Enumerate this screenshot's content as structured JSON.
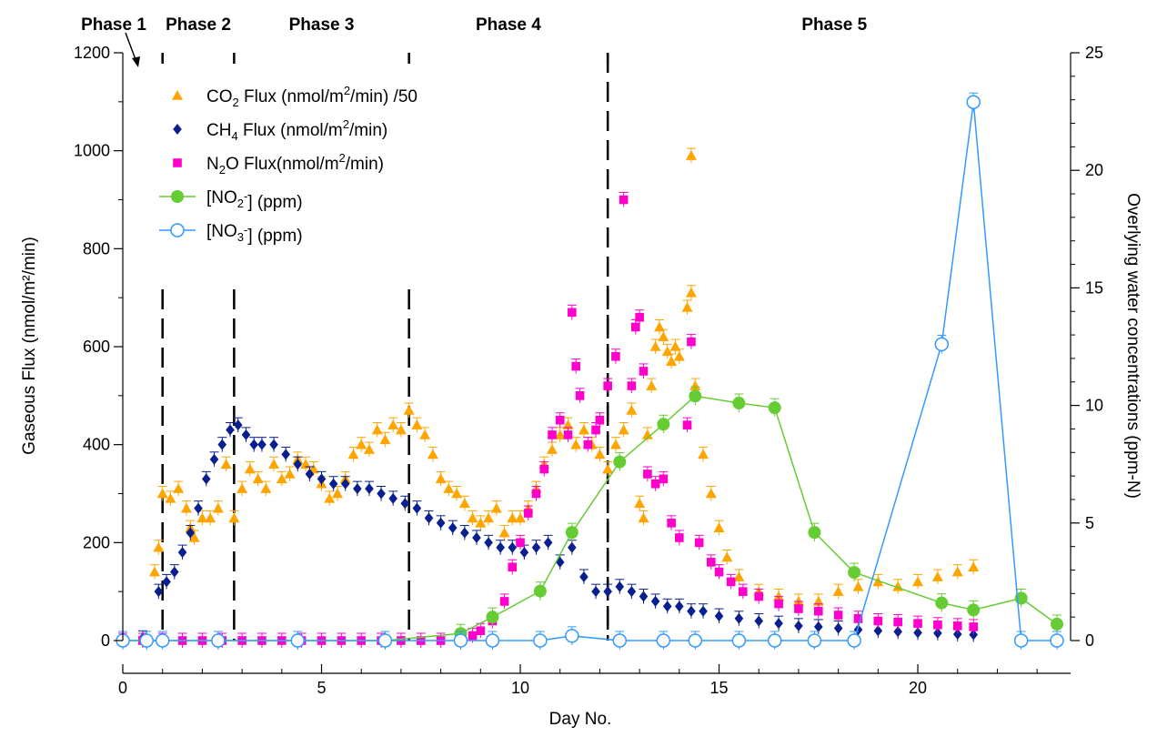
{
  "chart_data": {
    "type": "scatter",
    "xlabel": "Day No.",
    "ylabel": "Gaseous Flux (nmol/m²/min)",
    "y2label": "Overlying water concentrations (ppm-N)",
    "xlim": [
      -0.6,
      23.6
    ],
    "ylim": [
      0,
      1200
    ],
    "y2lim": [
      0,
      25
    ],
    "x_ticks": [
      0,
      5,
      10,
      15,
      20
    ],
    "y_ticks": [
      0,
      200,
      400,
      600,
      800,
      1000,
      1200
    ],
    "y2_ticks": [
      0,
      5,
      10,
      15,
      20,
      25
    ],
    "phase_boundaries": [
      1.0,
      2.8,
      7.2,
      12.2
    ],
    "phases": [
      {
        "label": "Phase 1",
        "x": 0.0
      },
      {
        "label": "Phase 2",
        "x": 1.9
      },
      {
        "label": "Phase 3",
        "x": 5.0
      },
      {
        "label": "Phase 4",
        "x": 9.7
      },
      {
        "label": "Phase 5",
        "x": 17.9
      }
    ],
    "series": [
      {
        "name": "CO2 Flux (nmol/m2/min) /50",
        "color": "#FFA500",
        "marker": "triangle",
        "axis": "left",
        "points": [
          [
            0.8,
            140
          ],
          [
            0.9,
            190
          ],
          [
            1.0,
            300
          ],
          [
            1.2,
            290
          ],
          [
            1.4,
            310
          ],
          [
            1.6,
            270
          ],
          [
            1.7,
            230
          ],
          [
            1.8,
            210
          ],
          [
            2.0,
            250
          ],
          [
            2.2,
            250
          ],
          [
            2.4,
            270
          ],
          [
            2.6,
            360
          ],
          [
            2.8,
            250
          ],
          [
            3.0,
            310
          ],
          [
            3.2,
            350
          ],
          [
            3.4,
            330
          ],
          [
            3.6,
            310
          ],
          [
            3.8,
            360
          ],
          [
            4.0,
            330
          ],
          [
            4.2,
            340
          ],
          [
            4.4,
            370
          ],
          [
            4.6,
            360
          ],
          [
            4.8,
            350
          ],
          [
            5.0,
            320
          ],
          [
            5.2,
            290
          ],
          [
            5.4,
            300
          ],
          [
            5.6,
            330
          ],
          [
            5.8,
            380
          ],
          [
            6.0,
            400
          ],
          [
            6.2,
            390
          ],
          [
            6.4,
            430
          ],
          [
            6.6,
            410
          ],
          [
            6.8,
            440
          ],
          [
            7.0,
            430
          ],
          [
            7.2,
            470
          ],
          [
            7.4,
            440
          ],
          [
            7.6,
            420
          ],
          [
            7.8,
            380
          ],
          [
            8.0,
            330
          ],
          [
            8.2,
            310
          ],
          [
            8.4,
            300
          ],
          [
            8.6,
            280
          ],
          [
            8.8,
            250
          ],
          [
            9.0,
            240
          ],
          [
            9.2,
            250
          ],
          [
            9.4,
            270
          ],
          [
            9.6,
            220
          ],
          [
            9.8,
            250
          ],
          [
            10.0,
            250
          ],
          [
            10.2,
            270
          ],
          [
            10.4,
            310
          ],
          [
            10.6,
            360
          ],
          [
            10.8,
            390
          ],
          [
            11.0,
            420
          ],
          [
            11.2,
            440
          ],
          [
            11.4,
            400
          ],
          [
            11.6,
            430
          ],
          [
            11.8,
            400
          ],
          [
            12.0,
            380
          ],
          [
            12.2,
            350
          ],
          [
            12.4,
            400
          ],
          [
            12.6,
            430
          ],
          [
            12.8,
            470
          ],
          [
            13.0,
            280
          ],
          [
            13.1,
            250
          ],
          [
            13.2,
            420
          ],
          [
            13.3,
            520
          ],
          [
            13.4,
            600
          ],
          [
            13.5,
            640
          ],
          [
            13.6,
            620
          ],
          [
            13.7,
            590
          ],
          [
            13.8,
            570
          ],
          [
            13.9,
            600
          ],
          [
            14.0,
            580
          ],
          [
            14.2,
            680
          ],
          [
            14.3,
            710
          ],
          [
            14.4,
            520
          ],
          [
            14.6,
            380
          ],
          [
            14.8,
            300
          ],
          [
            15.0,
            230
          ],
          [
            15.2,
            170
          ],
          [
            15.5,
            130
          ],
          [
            16.0,
            100
          ],
          [
            16.5,
            90
          ],
          [
            17.0,
            80
          ],
          [
            17.5,
            80
          ],
          [
            18.0,
            100
          ],
          [
            18.5,
            110
          ],
          [
            19.0,
            120
          ],
          [
            19.5,
            110
          ],
          [
            20.0,
            120
          ],
          [
            20.5,
            130
          ],
          [
            21.0,
            140
          ],
          [
            21.4,
            150
          ],
          [
            14.3,
            990
          ]
        ]
      },
      {
        "name": "CH4 Flux (nmol/m2/min)",
        "color": "#0A1F8F",
        "marker": "diamond",
        "axis": "left",
        "points": [
          [
            0.5,
            5
          ],
          [
            0.9,
            100
          ],
          [
            1.1,
            120
          ],
          [
            1.3,
            140
          ],
          [
            1.5,
            180
          ],
          [
            1.7,
            220
          ],
          [
            1.9,
            270
          ],
          [
            2.1,
            330
          ],
          [
            2.3,
            370
          ],
          [
            2.5,
            400
          ],
          [
            2.7,
            430
          ],
          [
            2.9,
            440
          ],
          [
            3.1,
            420
          ],
          [
            3.3,
            400
          ],
          [
            3.5,
            400
          ],
          [
            3.8,
            400
          ],
          [
            4.1,
            380
          ],
          [
            4.4,
            360
          ],
          [
            4.7,
            340
          ],
          [
            5.0,
            330
          ],
          [
            5.3,
            320
          ],
          [
            5.6,
            320
          ],
          [
            5.9,
            310
          ],
          [
            6.2,
            310
          ],
          [
            6.5,
            300
          ],
          [
            6.8,
            290
          ],
          [
            7.1,
            280
          ],
          [
            7.4,
            270
          ],
          [
            7.7,
            250
          ],
          [
            8.0,
            240
          ],
          [
            8.3,
            230
          ],
          [
            8.6,
            220
          ],
          [
            8.9,
            210
          ],
          [
            9.2,
            200
          ],
          [
            9.5,
            190
          ],
          [
            9.8,
            190
          ],
          [
            10.1,
            180
          ],
          [
            10.4,
            190
          ],
          [
            10.7,
            200
          ],
          [
            11.0,
            160
          ],
          [
            11.3,
            190
          ],
          [
            11.6,
            130
          ],
          [
            11.9,
            100
          ],
          [
            12.2,
            100
          ],
          [
            12.5,
            110
          ],
          [
            12.8,
            100
          ],
          [
            13.1,
            90
          ],
          [
            13.4,
            80
          ],
          [
            13.7,
            70
          ],
          [
            14.0,
            70
          ],
          [
            14.3,
            60
          ],
          [
            14.6,
            60
          ],
          [
            15.0,
            50
          ],
          [
            15.5,
            45
          ],
          [
            16.0,
            40
          ],
          [
            16.5,
            35
          ],
          [
            17.0,
            30
          ],
          [
            17.5,
            28
          ],
          [
            18.0,
            25
          ],
          [
            18.5,
            22
          ],
          [
            19.0,
            20
          ],
          [
            19.5,
            18
          ],
          [
            20.0,
            16
          ],
          [
            20.5,
            15
          ],
          [
            21.0,
            13
          ],
          [
            21.4,
            12
          ]
        ]
      },
      {
        "name": "N2O Flux(nmol/m2/min)",
        "color": "#FF00CC",
        "marker": "square",
        "axis": "left",
        "points": [
          [
            0.0,
            0
          ],
          [
            0.5,
            0
          ],
          [
            1.0,
            0
          ],
          [
            1.5,
            0
          ],
          [
            2.0,
            0
          ],
          [
            2.5,
            0
          ],
          [
            3.0,
            0
          ],
          [
            3.5,
            0
          ],
          [
            4.0,
            0
          ],
          [
            4.5,
            0
          ],
          [
            5.0,
            0
          ],
          [
            5.5,
            0
          ],
          [
            6.0,
            0
          ],
          [
            6.5,
            0
          ],
          [
            7.0,
            0
          ],
          [
            7.5,
            0
          ],
          [
            8.0,
            0
          ],
          [
            8.5,
            5
          ],
          [
            8.8,
            10
          ],
          [
            9.0,
            20
          ],
          [
            9.3,
            40
          ],
          [
            9.6,
            80
          ],
          [
            9.8,
            150
          ],
          [
            10.0,
            200
          ],
          [
            10.2,
            260
          ],
          [
            10.4,
            300
          ],
          [
            10.6,
            350
          ],
          [
            10.8,
            420
          ],
          [
            11.0,
            450
          ],
          [
            11.2,
            420
          ],
          [
            11.3,
            670
          ],
          [
            11.4,
            560
          ],
          [
            11.5,
            500
          ],
          [
            11.7,
            400
          ],
          [
            11.9,
            430
          ],
          [
            12.0,
            450
          ],
          [
            12.2,
            520
          ],
          [
            12.4,
            580
          ],
          [
            12.6,
            900
          ],
          [
            12.8,
            520
          ],
          [
            12.9,
            640
          ],
          [
            13.0,
            660
          ],
          [
            13.1,
            550
          ],
          [
            13.2,
            340
          ],
          [
            13.4,
            320
          ],
          [
            13.6,
            330
          ],
          [
            13.8,
            240
          ],
          [
            14.0,
            210
          ],
          [
            14.2,
            440
          ],
          [
            14.3,
            610
          ],
          [
            14.5,
            200
          ],
          [
            14.8,
            160
          ],
          [
            15.0,
            140
          ],
          [
            15.3,
            120
          ],
          [
            15.6,
            100
          ],
          [
            16.0,
            90
          ],
          [
            16.5,
            75
          ],
          [
            17.0,
            65
          ],
          [
            17.5,
            60
          ],
          [
            18.0,
            52
          ],
          [
            18.5,
            45
          ],
          [
            19.0,
            40
          ],
          [
            19.5,
            38
          ],
          [
            20.0,
            35
          ],
          [
            20.5,
            32
          ],
          [
            21.0,
            30
          ],
          [
            21.4,
            28
          ]
        ]
      },
      {
        "name": "[NO2-] (ppm)",
        "color": "#66CC33",
        "marker": "filled-circle",
        "axis": "right",
        "points": [
          [
            0.0,
            0.0
          ],
          [
            0.6,
            0.0
          ],
          [
            2.4,
            0.0
          ],
          [
            4.4,
            0.0
          ],
          [
            6.6,
            0.0
          ],
          [
            8.5,
            0.3
          ],
          [
            9.3,
            1.0
          ],
          [
            10.5,
            2.1
          ],
          [
            11.3,
            4.6
          ],
          [
            12.5,
            7.6
          ],
          [
            13.6,
            9.2
          ],
          [
            14.4,
            10.4
          ],
          [
            15.5,
            10.1
          ],
          [
            16.4,
            9.9
          ],
          [
            17.4,
            4.6
          ],
          [
            18.4,
            2.9
          ],
          [
            20.6,
            1.6
          ],
          [
            21.4,
            1.3
          ],
          [
            22.6,
            1.8
          ],
          [
            23.5,
            0.7
          ]
        ]
      },
      {
        "name": "[NO3-] (ppm)",
        "color": "#3399FF",
        "marker": "open-circle",
        "axis": "right",
        "points": [
          [
            0.0,
            0.0
          ],
          [
            0.6,
            0.0
          ],
          [
            1.0,
            0.0
          ],
          [
            2.4,
            0.0
          ],
          [
            4.4,
            0.0
          ],
          [
            6.6,
            0.0
          ],
          [
            8.5,
            0.0
          ],
          [
            9.3,
            0.0
          ],
          [
            10.5,
            0.0
          ],
          [
            11.3,
            0.2
          ],
          [
            12.5,
            0.0
          ],
          [
            13.6,
            0.0
          ],
          [
            14.4,
            0.0
          ],
          [
            15.5,
            0.0
          ],
          [
            16.4,
            0.0
          ],
          [
            17.4,
            0.0
          ],
          [
            18.4,
            0.0
          ],
          [
            20.6,
            12.6
          ],
          [
            21.4,
            22.9
          ],
          [
            22.6,
            0.0
          ],
          [
            23.5,
            0.0
          ]
        ]
      }
    ],
    "legend": [
      {
        "pre": "CO",
        "sub": "2",
        "mid": " Flux (nmol/m",
        "sup": "2",
        "post": "/min) /50"
      },
      {
        "pre": "CH",
        "sub": "4",
        "mid": " Flux (nmol/m",
        "sup": "2",
        "post": "/min)"
      },
      {
        "pre": "N",
        "sub": "2",
        "mid": "O Flux(nmol/m",
        "sup": "2",
        "post": "/min)"
      },
      {
        "pre": "[NO",
        "sub": "2",
        "mid": "",
        "sup": "-",
        "post": "] (ppm)"
      },
      {
        "pre": "[NO",
        "sub": "3",
        "mid": "",
        "sup": "-",
        "post": "] (ppm)"
      }
    ],
    "legend_position": "top-left"
  }
}
